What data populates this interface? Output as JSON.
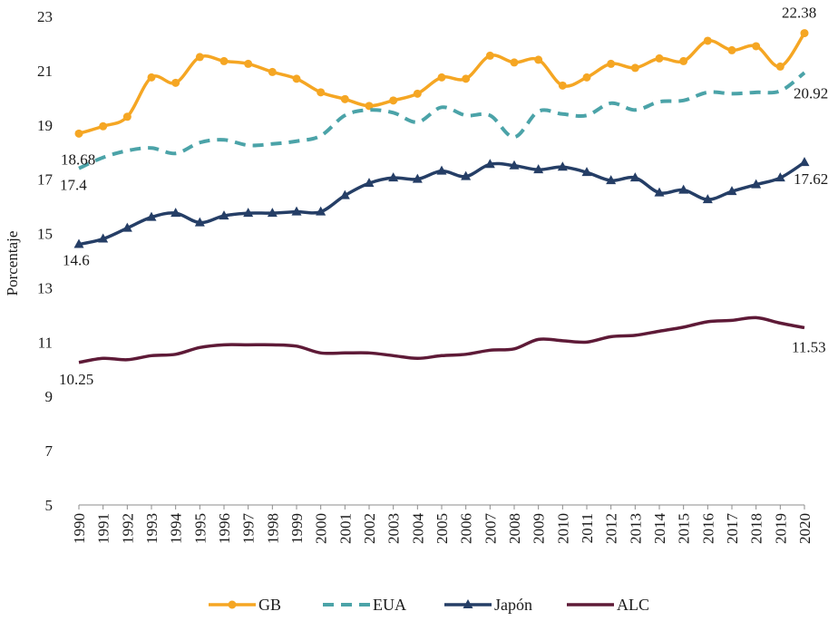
{
  "chart_data": {
    "type": "line",
    "title": "",
    "xlabel": "",
    "ylabel": "Porcentaje",
    "ylim": [
      5,
      23
    ],
    "yticks": [
      "5",
      "7",
      "9",
      "11",
      "13",
      "15",
      "17",
      "19",
      "21",
      "23"
    ],
    "categories": [
      "1990",
      "1991",
      "1992",
      "1993",
      "1994",
      "1995",
      "1996",
      "1997",
      "1998",
      "1999",
      "2000",
      "2001",
      "2002",
      "2003",
      "2004",
      "2005",
      "2006",
      "2007",
      "2008",
      "2009",
      "2010",
      "2011",
      "2012",
      "2013",
      "2014",
      "2015",
      "2016",
      "2017",
      "2018",
      "2019",
      "2020"
    ],
    "series": [
      {
        "name": "GB",
        "color": "#F5A623",
        "style": "solid",
        "marker": "circle",
        "values": [
          18.68,
          18.95,
          19.3,
          20.75,
          20.55,
          21.5,
          21.35,
          21.25,
          20.95,
          20.7,
          20.2,
          19.95,
          19.7,
          19.9,
          20.15,
          20.75,
          20.7,
          21.55,
          21.3,
          21.4,
          20.45,
          20.75,
          21.25,
          21.1,
          21.45,
          21.35,
          22.1,
          21.75,
          21.9,
          21.15,
          22.38
        ]
      },
      {
        "name": "EUA",
        "color": "#4BA3A8",
        "style": "dashed",
        "marker": "none",
        "values": [
          17.4,
          17.8,
          18.05,
          18.15,
          17.95,
          18.35,
          18.45,
          18.25,
          18.3,
          18.4,
          18.6,
          19.35,
          19.55,
          19.45,
          19.1,
          19.65,
          19.35,
          19.35,
          18.55,
          19.5,
          19.4,
          19.35,
          19.8,
          19.55,
          19.85,
          19.9,
          20.2,
          20.15,
          20.2,
          20.25,
          20.92
        ]
      },
      {
        "name": "Japón",
        "color": "#253E66",
        "style": "solid",
        "marker": "triangle",
        "values": [
          14.6,
          14.8,
          15.2,
          15.6,
          15.75,
          15.4,
          15.65,
          15.75,
          15.75,
          15.8,
          15.8,
          16.4,
          16.85,
          17.05,
          17.0,
          17.3,
          17.1,
          17.55,
          17.5,
          17.35,
          17.45,
          17.25,
          16.95,
          17.05,
          16.5,
          16.6,
          16.25,
          16.55,
          16.8,
          17.05,
          17.62
        ]
      },
      {
        "name": "ALC",
        "color": "#5E1A37",
        "style": "solid",
        "marker": "none",
        "values": [
          10.25,
          10.4,
          10.35,
          10.5,
          10.55,
          10.8,
          10.9,
          10.9,
          10.9,
          10.85,
          10.6,
          10.6,
          10.6,
          10.5,
          10.4,
          10.5,
          10.55,
          10.7,
          10.75,
          11.1,
          11.05,
          11.0,
          11.2,
          11.25,
          11.4,
          11.55,
          11.75,
          11.8,
          11.9,
          11.7,
          11.53
        ]
      }
    ],
    "annotations": [
      {
        "series": "GB",
        "point": "start",
        "text": "18.68"
      },
      {
        "series": "GB",
        "point": "end",
        "text": "22.38"
      },
      {
        "series": "EUA",
        "point": "start",
        "text": "17.4"
      },
      {
        "series": "EUA",
        "point": "end",
        "text": "20.92"
      },
      {
        "series": "Japón",
        "point": "start",
        "text": "14.6"
      },
      {
        "series": "Japón",
        "point": "end",
        "text": "17.62"
      },
      {
        "series": "ALC",
        "point": "start",
        "text": "10.25"
      },
      {
        "series": "ALC",
        "point": "end",
        "text": "11.53"
      }
    ],
    "legend": {
      "position": "bottom",
      "items": [
        "GB",
        "EUA",
        "Japón",
        "ALC"
      ]
    },
    "grid": false
  }
}
